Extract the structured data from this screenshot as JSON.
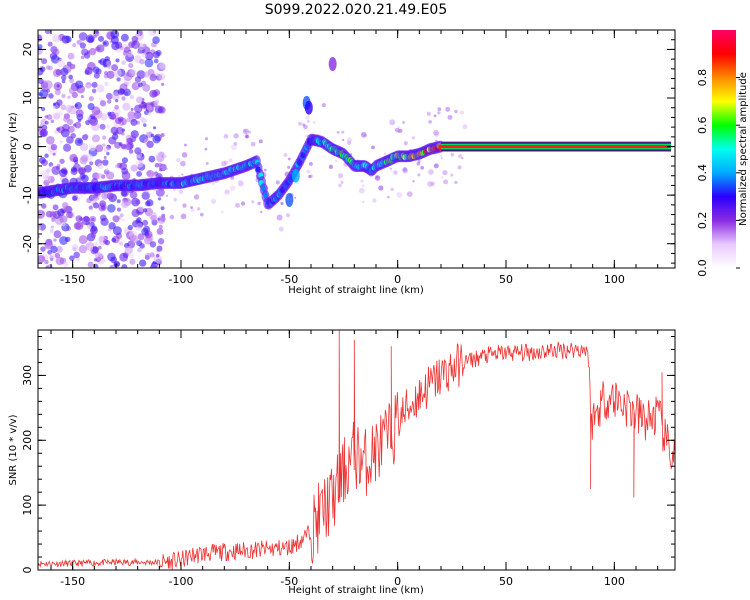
{
  "page": {
    "title": "S099.2022.020.21.49.E05"
  },
  "chart_data": [
    {
      "type": "heatmap",
      "xlabel": "Height of straight line (km)",
      "ylabel": "Frequency (Hz)",
      "xlim": [
        -166,
        128
      ],
      "ylim": [
        -25,
        24
      ],
      "xticks": [
        -150,
        -100,
        -50,
        0,
        50,
        100
      ],
      "yticks": [
        -20,
        -10,
        0,
        10,
        20
      ],
      "colorbar": {
        "label": "Normalized spectral amplitude",
        "range": [
          0,
          1
        ],
        "ticks": [
          "0.0",
          "0.2",
          "0.4",
          "0.6",
          "0.8"
        ],
        "colors": [
          "#ffffff",
          "#e9c9ff",
          "#8a2be2",
          "#2a00ff",
          "#00aaff",
          "#00ffee",
          "#00ff00",
          "#ffff00",
          "#ff8800",
          "#ff0000",
          "#ff0066"
        ]
      },
      "ridge": {
        "x": [
          -165,
          -150,
          -140,
          -130,
          -120,
          -110,
          -100,
          -90,
          -80,
          -70,
          -65,
          -60,
          -55,
          -50,
          -45,
          -40,
          -35,
          -30,
          -25,
          -20,
          -15,
          -12,
          -10,
          -5,
          0,
          5,
          10,
          15,
          20,
          25,
          50,
          100,
          127
        ],
        "y": [
          -9.5,
          -8.5,
          -8.5,
          -8,
          -8,
          -7.5,
          -7.5,
          -6.5,
          -5.5,
          -4,
          -3,
          -12,
          -10,
          -7,
          -3,
          1.5,
          1,
          -0.5,
          -1.5,
          -4,
          -4,
          -5,
          -4,
          -3,
          -2,
          -2,
          -1.5,
          -0.5,
          0,
          0,
          0,
          0,
          0
        ],
        "amplitude": [
          0.35,
          0.35,
          0.35,
          0.35,
          0.35,
          0.35,
          0.4,
          0.45,
          0.45,
          0.45,
          0.4,
          0.4,
          0.35,
          0.35,
          0.35,
          0.35,
          0.45,
          0.55,
          0.55,
          0.5,
          0.5,
          0.4,
          0.5,
          0.6,
          0.6,
          0.65,
          0.7,
          0.8,
          0.85,
          0.9,
          0.9,
          0.9,
          0.9
        ]
      },
      "noise_region_x": [
        -166,
        -108
      ]
    },
    {
      "type": "line",
      "xlabel": "Height of straight line (km)",
      "ylabel": "SNR (10 * v/v)",
      "xlim": [
        -166,
        128
      ],
      "ylim": [
        0,
        370
      ],
      "xticks": [
        -150,
        -100,
        -50,
        0,
        50,
        100
      ],
      "yticks": [
        0,
        100,
        200,
        300
      ],
      "series": [
        {
          "color": "#ee3333",
          "x": [
            -166,
            -150,
            -130,
            -110,
            -100,
            -95,
            -90,
            -80,
            -70,
            -60,
            -50,
            -45,
            -40,
            -35,
            -30,
            -27,
            -25,
            -20,
            -15,
            -10,
            -5,
            -2,
            0,
            5,
            10,
            20,
            30,
            40,
            50,
            60,
            70,
            80,
            88,
            89,
            90,
            95,
            100,
            105,
            110,
            115,
            120,
            125,
            128
          ],
          "y": [
            10,
            10,
            12,
            12,
            15,
            22,
            25,
            28,
            30,
            32,
            35,
            45,
            60,
            90,
            110,
            130,
            150,
            180,
            165,
            185,
            200,
            215,
            230,
            250,
            270,
            300,
            320,
            330,
            335,
            335,
            338,
            340,
            340,
            230,
            230,
            265,
            265,
            255,
            240,
            230,
            240,
            185,
            175
          ],
          "spikes": [
            {
              "x": -27,
              "y": 370
            },
            {
              "x": -20,
              "y": 355
            },
            {
              "x": -3,
              "y": 345
            },
            {
              "x": 89,
              "y": 125
            },
            {
              "x": 109,
              "y": 112
            },
            {
              "x": 122,
              "y": 305
            }
          ]
        }
      ]
    }
  ]
}
